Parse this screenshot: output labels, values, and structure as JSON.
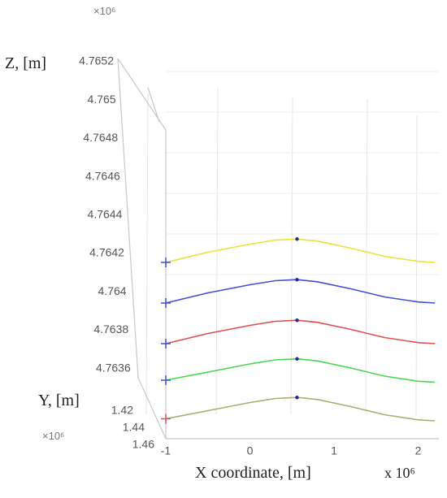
{
  "chart_data": {
    "type": "line",
    "projection": "3d",
    "title": "",
    "xlabel": "X coordinate, [m]",
    "ylabel": "Y, [m]",
    "zlabel": "Z, [m]",
    "x_multiplier": "x 10⁶",
    "y_multiplier": "×10⁶",
    "z_multiplier": "×10⁶",
    "x_ticks": [
      "-1",
      "0",
      "1",
      "2"
    ],
    "y_ticks": [
      "1.42",
      "1.44",
      "1.46"
    ],
    "z_ticks": [
      "4.7652",
      "4.765",
      "4.7648",
      "4.7646",
      "4.7644",
      "4.7642",
      "4.764",
      "4.7638",
      "4.7636"
    ],
    "xlim": [
      -1,
      2.2
    ],
    "zlim": [
      4.76348,
      4.76522
    ],
    "grid": true,
    "legend": "none",
    "series": [
      {
        "color": "#e8e23a",
        "x": [
          -1,
          -0.5,
          0,
          0.3,
          0.56,
          0.8,
          1.2,
          1.6,
          2,
          2.2
        ],
        "z": [
          4.76418,
          4.76423,
          4.76427,
          4.76429,
          4.764295,
          4.764285,
          4.76425,
          4.76421,
          4.764185,
          4.76418
        ]
      },
      {
        "color": "#3f4fd8",
        "x": [
          -1,
          -0.5,
          0,
          0.3,
          0.56,
          0.8,
          1.2,
          1.6,
          2,
          2.2
        ],
        "z": [
          4.76398,
          4.76403,
          4.76407,
          4.76409,
          4.764095,
          4.764085,
          4.76405,
          4.76401,
          4.763985,
          4.76398
        ]
      },
      {
        "color": "#e04f4f",
        "x": [
          -1,
          -0.5,
          0,
          0.3,
          0.56,
          0.8,
          1.2,
          1.6,
          2,
          2.2
        ],
        "z": [
          4.76378,
          4.76383,
          4.76387,
          4.76389,
          4.763895,
          4.763885,
          4.76385,
          4.76381,
          4.763785,
          4.76378
        ]
      },
      {
        "color": "#49d64f",
        "x": [
          -1,
          -0.5,
          0,
          0.3,
          0.56,
          0.8,
          1.2,
          1.6,
          2,
          2.2
        ],
        "z": [
          4.7636,
          4.76364,
          4.76368,
          4.7637,
          4.763705,
          4.763695,
          4.76366,
          4.76362,
          4.763595,
          4.76359
        ]
      },
      {
        "color": "#a8ae6c",
        "x": [
          -1,
          -0.5,
          0,
          0.3,
          0.56,
          0.8,
          1.2,
          1.6,
          2,
          2.2
        ],
        "z": [
          4.76341,
          4.76345,
          4.76349,
          4.76351,
          4.763515,
          4.763505,
          4.76347,
          4.76343,
          4.763405,
          4.7634
        ]
      }
    ],
    "start_markers": [
      {
        "z": 4.76418,
        "color": "#3f4fd8"
      },
      {
        "z": 4.76398,
        "color": "#3f4fd8"
      },
      {
        "z": 4.76378,
        "color": "#3f4fd8"
      },
      {
        "z": 4.7636,
        "color": "#3f4fd8"
      },
      {
        "z": 4.76341,
        "color": "#e04f4f"
      }
    ],
    "peak_markers": [
      {
        "x": 0.56,
        "z": 4.764295
      },
      {
        "x": 0.56,
        "z": 4.764095
      },
      {
        "x": 0.56,
        "z": 4.763895
      },
      {
        "x": 0.56,
        "z": 4.763705
      },
      {
        "x": 0.56,
        "z": 4.763515
      }
    ],
    "peak_marker_color": "#1f2a8c"
  }
}
